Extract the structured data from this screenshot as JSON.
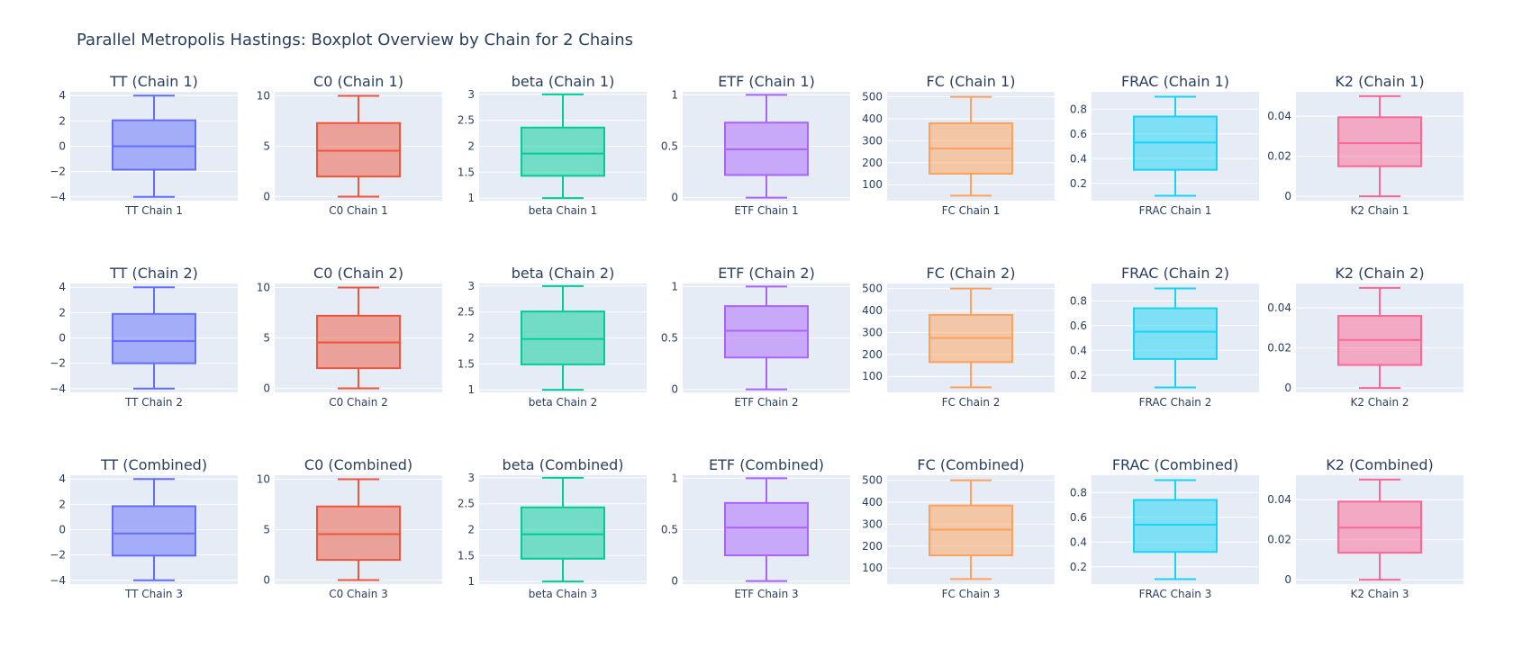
{
  "figure_title": "Parallel Metropolis Hastings: Boxplot Overview by Chain for 2 Chains",
  "colors": {
    "TT": "#636efa",
    "C0": "#ef553b",
    "beta": "#00cc96",
    "ETF": "#ab63fa",
    "FC": "#ffa15a",
    "FRAC": "#19d3f3",
    "K2": "#ff6692",
    "plot_bg": "#e5ecf6",
    "grid": "#ffffff",
    "text": "#2a3f5f"
  },
  "chart_data": [
    {
      "type": "box",
      "title": "TT (Chain 1)",
      "category": "TT Chain 1",
      "ylim": [
        -4.3,
        4.3
      ],
      "ticks": [
        4,
        2,
        0,
        -2,
        -4
      ],
      "tick_labels": [
        "4",
        "2",
        "0",
        "−2",
        "−4"
      ],
      "color_key": "TT",
      "min": -4,
      "q1": -1.85,
      "median": 0,
      "q3": 2.05,
      "max": 4
    },
    {
      "type": "box",
      "title": "C0 (Chain 1)",
      "category": "C0 Chain 1",
      "ylim": [
        -0.4,
        10.4
      ],
      "ticks": [
        10,
        5,
        0
      ],
      "tick_labels": [
        "10",
        "5",
        "0"
      ],
      "color_key": "C0",
      "min": 0,
      "q1": 2,
      "median": 4.55,
      "q3": 7.3,
      "max": 10
    },
    {
      "type": "box",
      "title": "beta (Chain 1)",
      "category": "beta Chain 1",
      "ylim": [
        0.95,
        3.05
      ],
      "ticks": [
        3,
        2.5,
        2,
        1.5,
        1
      ],
      "tick_labels": [
        "3",
        "2.5",
        "2",
        "1.5",
        "1"
      ],
      "color_key": "beta",
      "min": 1,
      "q1": 1.43,
      "median": 1.86,
      "q3": 2.36,
      "max": 3
    },
    {
      "type": "box",
      "title": "ETF (Chain 1)",
      "category": "ETF Chain 1",
      "ylim": [
        -0.03,
        1.03
      ],
      "ticks": [
        1,
        0.5,
        0
      ],
      "tick_labels": [
        "1",
        "0.5",
        "0"
      ],
      "color_key": "ETF",
      "min": 0,
      "q1": 0.22,
      "median": 0.47,
      "q3": 0.73,
      "max": 1
    },
    {
      "type": "box",
      "title": "FC (Chain 1)",
      "category": "FC Chain 1",
      "ylim": [
        27,
        523
      ],
      "ticks": [
        500,
        400,
        300,
        200,
        100
      ],
      "tick_labels": [
        "500",
        "400",
        "300",
        "200",
        "100"
      ],
      "color_key": "FC",
      "min": 50,
      "q1": 150,
      "median": 265,
      "q3": 380,
      "max": 500
    },
    {
      "type": "box",
      "title": "FRAC (Chain 1)",
      "category": "FRAC Chain 1",
      "ylim": [
        0.06,
        0.94
      ],
      "ticks": [
        0.8,
        0.6,
        0.4,
        0.2
      ],
      "tick_labels": [
        "0.8",
        "0.6",
        "0.4",
        "0.2"
      ],
      "color_key": "FRAC",
      "min": 0.1,
      "q1": 0.31,
      "median": 0.53,
      "q3": 0.74,
      "max": 0.9
    },
    {
      "type": "box",
      "title": "K2 (Chain 1)",
      "category": "K2 Chain 1",
      "ylim": [
        -0.0022,
        0.0522
      ],
      "ticks": [
        0.04,
        0.02,
        0
      ],
      "tick_labels": [
        "0.04",
        "0.02",
        "0"
      ],
      "color_key": "K2",
      "min": 0,
      "q1": 0.015,
      "median": 0.0265,
      "q3": 0.0395,
      "max": 0.05
    },
    {
      "type": "box",
      "title": "TT (Chain 2)",
      "category": "TT Chain 2",
      "ylim": [
        -4.3,
        4.3
      ],
      "ticks": [
        4,
        2,
        0,
        -2,
        -4
      ],
      "tick_labels": [
        "4",
        "2",
        "0",
        "−2",
        "−4"
      ],
      "color_key": "TT",
      "min": -4,
      "q1": -2,
      "median": -0.25,
      "q3": 1.9,
      "max": 4
    },
    {
      "type": "box",
      "title": "C0 (Chain 2)",
      "category": "C0 Chain 2",
      "ylim": [
        -0.4,
        10.4
      ],
      "ticks": [
        10,
        5,
        0
      ],
      "tick_labels": [
        "10",
        "5",
        "0"
      ],
      "color_key": "C0",
      "min": 0,
      "q1": 2,
      "median": 4.55,
      "q3": 7.2,
      "max": 10
    },
    {
      "type": "box",
      "title": "beta (Chain 2)",
      "category": "beta Chain 2",
      "ylim": [
        0.95,
        3.05
      ],
      "ticks": [
        3,
        2.5,
        2,
        1.5,
        1
      ],
      "tick_labels": [
        "3",
        "2.5",
        "2",
        "1.5",
        "1"
      ],
      "color_key": "beta",
      "min": 1,
      "q1": 1.49,
      "median": 1.98,
      "q3": 2.51,
      "max": 3
    },
    {
      "type": "box",
      "title": "ETF (Chain 2)",
      "category": "ETF Chain 2",
      "ylim": [
        -0.03,
        1.03
      ],
      "ticks": [
        1,
        0.5,
        0
      ],
      "tick_labels": [
        "1",
        "0.5",
        "0"
      ],
      "color_key": "ETF",
      "min": 0,
      "q1": 0.31,
      "median": 0.57,
      "q3": 0.81,
      "max": 1
    },
    {
      "type": "box",
      "title": "FC (Chain 2)",
      "category": "FC Chain 2",
      "ylim": [
        27,
        523
      ],
      "ticks": [
        500,
        400,
        300,
        200,
        100
      ],
      "tick_labels": [
        "500",
        "400",
        "300",
        "200",
        "100"
      ],
      "color_key": "FC",
      "min": 50,
      "q1": 165,
      "median": 275,
      "q3": 380,
      "max": 500
    },
    {
      "type": "box",
      "title": "FRAC (Chain 2)",
      "category": "FRAC Chain 2",
      "ylim": [
        0.06,
        0.94
      ],
      "ticks": [
        0.8,
        0.6,
        0.4,
        0.2
      ],
      "tick_labels": [
        "0.8",
        "0.6",
        "0.4",
        "0.2"
      ],
      "color_key": "FRAC",
      "min": 0.1,
      "q1": 0.33,
      "median": 0.55,
      "q3": 0.74,
      "max": 0.9
    },
    {
      "type": "box",
      "title": "K2 (Chain 2)",
      "category": "K2 Chain 2",
      "ylim": [
        -0.0022,
        0.0522
      ],
      "ticks": [
        0.04,
        0.02,
        0
      ],
      "tick_labels": [
        "0.04",
        "0.02",
        "0"
      ],
      "color_key": "K2",
      "min": 0,
      "q1": 0.0115,
      "median": 0.024,
      "q3": 0.036,
      "max": 0.05
    },
    {
      "type": "box",
      "title": "TT (Combined)",
      "category": "TT Chain 3",
      "ylim": [
        -4.3,
        4.3
      ],
      "ticks": [
        4,
        2,
        0,
        -2,
        -4
      ],
      "tick_labels": [
        "4",
        "2",
        "0",
        "−2",
        "−4"
      ],
      "color_key": "TT",
      "min": -4,
      "q1": -2.05,
      "median": -0.3,
      "q3": 1.85,
      "max": 4
    },
    {
      "type": "box",
      "title": "C0 (Combined)",
      "category": "C0 Chain 3",
      "ylim": [
        -0.4,
        10.4
      ],
      "ticks": [
        10,
        5,
        0
      ],
      "tick_labels": [
        "10",
        "5",
        "0"
      ],
      "color_key": "C0",
      "min": 0,
      "q1": 2,
      "median": 4.55,
      "q3": 7.3,
      "max": 10
    },
    {
      "type": "box",
      "title": "beta (Combined)",
      "category": "beta Chain 3",
      "ylim": [
        0.95,
        3.05
      ],
      "ticks": [
        3,
        2.5,
        2,
        1.5,
        1
      ],
      "tick_labels": [
        "3",
        "2.5",
        "2",
        "1.5",
        "1"
      ],
      "color_key": "beta",
      "min": 1,
      "q1": 1.44,
      "median": 1.91,
      "q3": 2.43,
      "max": 3
    },
    {
      "type": "box",
      "title": "ETF (Combined)",
      "category": "ETF Chain 3",
      "ylim": [
        -0.03,
        1.03
      ],
      "ticks": [
        1,
        0.5,
        0
      ],
      "tick_labels": [
        "1",
        "0.5",
        "0"
      ],
      "color_key": "ETF",
      "min": 0,
      "q1": 0.25,
      "median": 0.52,
      "q3": 0.76,
      "max": 1
    },
    {
      "type": "box",
      "title": "FC (Combined)",
      "category": "FC Chain 3",
      "ylim": [
        27,
        523
      ],
      "ticks": [
        500,
        400,
        300,
        200,
        100
      ],
      "tick_labels": [
        "500",
        "400",
        "300",
        "200",
        "100"
      ],
      "color_key": "FC",
      "min": 50,
      "q1": 158,
      "median": 275,
      "q3": 385,
      "max": 500
    },
    {
      "type": "box",
      "title": "FRAC (Combined)",
      "category": "FRAC Chain 3",
      "ylim": [
        0.06,
        0.94
      ],
      "ticks": [
        0.8,
        0.6,
        0.4,
        0.2
      ],
      "tick_labels": [
        "0.8",
        "0.6",
        "0.4",
        "0.2"
      ],
      "color_key": "FRAC",
      "min": 0.1,
      "q1": 0.32,
      "median": 0.54,
      "q3": 0.74,
      "max": 0.9
    },
    {
      "type": "box",
      "title": "K2 (Combined)",
      "category": "K2 Chain 3",
      "ylim": [
        -0.0022,
        0.0522
      ],
      "ticks": [
        0.04,
        0.02,
        0
      ],
      "tick_labels": [
        "0.04",
        "0.02",
        "0"
      ],
      "color_key": "K2",
      "min": 0,
      "q1": 0.0135,
      "median": 0.026,
      "q3": 0.039,
      "max": 0.05
    }
  ]
}
